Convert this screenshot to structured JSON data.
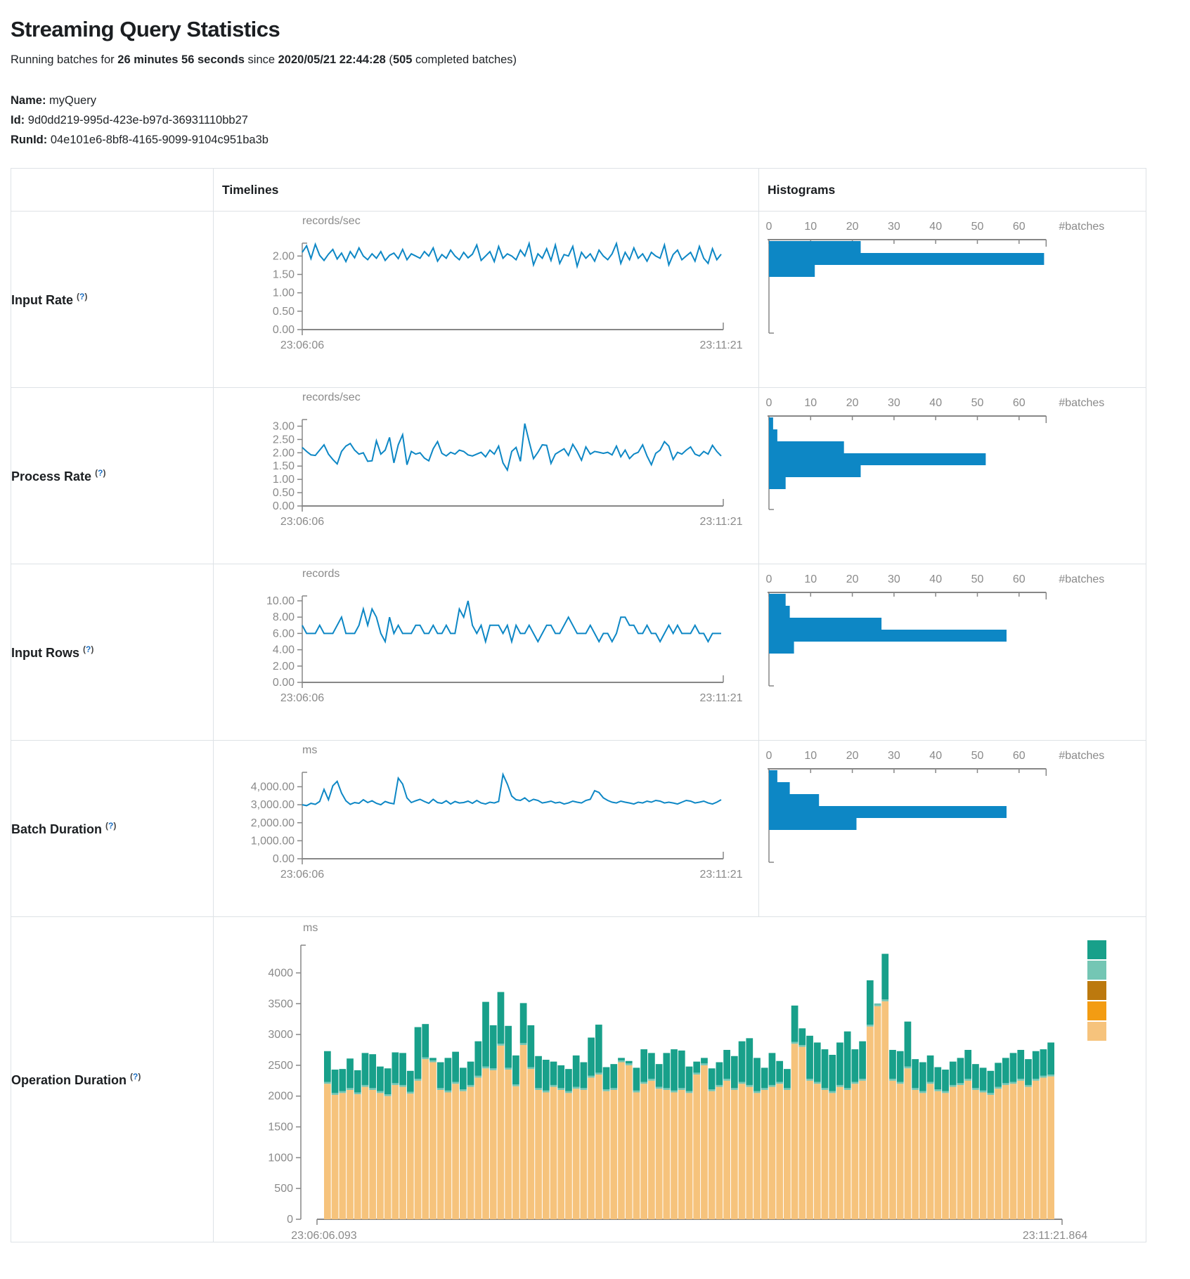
{
  "page": {
    "title": "Streaming Query Statistics",
    "subtitle": {
      "prefix": "Running batches for ",
      "duration": "26 minutes 56 seconds",
      "mid": " since ",
      "start_time": "2020/05/21 22:44:28",
      "paren_open": " (",
      "completed_batches": "505",
      "suffix": " completed batches)"
    },
    "name_label": "Name:",
    "name_value": "myQuery",
    "id_label": "Id:",
    "id_value": "9d0dd219-995d-423e-b97d-36931110bb27",
    "runid_label": "RunId:",
    "runid_value": "04e101e6-8bf8-4165-9099-9104c951ba3b"
  },
  "table": {
    "header_timelines": "Timelines",
    "header_histograms": "Histograms"
  },
  "rows": [
    {
      "label": "Input Rate",
      "help_open": "(",
      "help_q": "?",
      "help_close": ")"
    },
    {
      "label": "Process Rate",
      "help_open": "(",
      "help_q": "?",
      "help_close": ")"
    },
    {
      "label": "Input Rows",
      "help_open": "(",
      "help_q": "?",
      "help_close": ")"
    },
    {
      "label": "Batch Duration",
      "help_open": "(",
      "help_q": "?",
      "help_close": ")"
    },
    {
      "label": "Operation Duration",
      "help_open": "(",
      "help_q": "?",
      "help_close": ")"
    }
  ],
  "colors": {
    "line_blue": "#0d87c5",
    "hist_blue": "#0d87c5",
    "axis_gray": "#878787",
    "text_gray": "#8a8a8a",
    "teal": "#18a08a",
    "light_teal": "#74c6b4",
    "dark_orange": "#bc790e",
    "orange": "#f39c12",
    "tan": "#f6c37c"
  },
  "chart_data": [
    {
      "name": "input_rate",
      "timeline": {
        "type": "line",
        "unit": "records/sec",
        "x_start": "23:06:06",
        "x_end": "23:11:21",
        "ymax": 2.35,
        "yticks": [
          2.0,
          1.5,
          1.0,
          0.5,
          0
        ],
        "ytick_labels": [
          "2.00",
          "1.50",
          "1.00",
          "0.50",
          "0.00"
        ],
        "values": [
          2.1,
          2.28,
          1.93,
          2.32,
          2.02,
          1.88,
          2.05,
          2.18,
          1.92,
          2.08,
          1.85,
          2.12,
          1.95,
          2.22,
          2.0,
          1.9,
          2.06,
          1.94,
          2.12,
          1.88,
          2.02,
          2.08,
          1.93,
          2.18,
          1.9,
          2.06,
          2.0,
          1.94,
          2.12,
          2.0,
          2.22,
          1.86,
          2.04,
          1.94,
          2.16,
          2.0,
          1.9,
          2.1,
          1.95,
          2.05,
          2.3,
          1.88,
          2.0,
          2.12,
          1.85,
          2.26,
          1.94,
          2.06,
          2.0,
          1.9,
          2.16,
          2.0,
          2.34,
          1.76,
          2.06,
          1.94,
          2.2,
          1.88,
          2.3,
          1.8,
          2.04,
          2.0,
          2.26,
          1.72,
          2.1,
          1.94,
          2.06,
          1.86,
          2.16,
          2.0,
          1.9,
          2.06,
          2.34,
          1.8,
          2.1,
          1.9,
          2.22,
          1.94,
          2.06,
          1.86,
          2.1,
          2.0,
          1.94,
          2.3,
          1.76,
          2.04,
          2.16,
          1.9,
          2.0,
          2.1,
          1.86,
          2.26,
          1.94,
          1.8,
          2.2,
          1.9,
          2.05
        ]
      },
      "histogram": {
        "type": "bar",
        "xlabel": "#batches",
        "xticks": [
          0,
          10,
          20,
          30,
          40,
          50,
          60
        ],
        "axis_max": 66.5,
        "values": [
          22,
          66,
          11
        ]
      }
    },
    {
      "name": "process_rate",
      "timeline": {
        "type": "line",
        "unit": "records/sec",
        "x_start": "23:06:06",
        "x_end": "23:11:21",
        "ymax": 3.25,
        "yticks": [
          3.0,
          2.5,
          2.0,
          1.5,
          1.0,
          0.5,
          0
        ],
        "ytick_labels": [
          "3.00",
          "2.50",
          "2.00",
          "1.50",
          "1.00",
          "0.50",
          "0.00"
        ],
        "values": [
          2.2,
          2.05,
          1.92,
          1.9,
          2.1,
          2.3,
          1.95,
          1.75,
          1.58,
          2.05,
          2.25,
          2.35,
          2.1,
          1.95,
          2.0,
          1.68,
          1.7,
          2.45,
          1.95,
          2.1,
          2.58,
          1.62,
          2.3,
          2.68,
          1.55,
          2.05,
          1.95,
          2.0,
          1.8,
          1.7,
          2.15,
          2.42,
          1.98,
          1.88,
          2.02,
          1.95,
          2.1,
          2.05,
          1.92,
          1.88,
          1.95,
          2.02,
          1.85,
          2.1,
          1.95,
          2.25,
          1.62,
          1.35,
          2.05,
          2.2,
          1.68,
          3.1,
          2.42,
          1.78,
          2.02,
          2.3,
          2.28,
          1.6,
          1.95,
          2.05,
          2.15,
          1.9,
          2.32,
          2.05,
          1.72,
          2.22,
          1.95,
          2.05,
          2.02,
          1.98,
          2.02,
          1.92,
          2.25,
          1.85,
          2.1,
          1.78,
          1.95,
          2.02,
          2.3,
          1.88,
          1.55,
          1.98,
          2.1,
          2.42,
          2.25,
          1.75,
          2.02,
          1.95,
          2.1,
          2.22,
          1.95,
          1.88,
          2.05,
          1.95,
          2.28,
          2.05,
          1.88
        ]
      },
      "histogram": {
        "type": "bar",
        "xlabel": "#batches",
        "xticks": [
          0,
          10,
          20,
          30,
          40,
          50,
          60
        ],
        "axis_max": 66.5,
        "values": [
          1,
          2,
          18,
          52,
          22,
          4
        ]
      }
    },
    {
      "name": "input_rows",
      "timeline": {
        "type": "line",
        "unit": "records",
        "x_start": "23:06:06",
        "x_end": "23:11:21",
        "ymax": 10.6,
        "yticks": [
          10,
          8,
          6,
          4,
          2,
          0
        ],
        "ytick_labels": [
          "10.00",
          "8.00",
          "6.00",
          "4.00",
          "2.00",
          "0.00"
        ],
        "values": [
          7,
          6,
          6,
          6,
          7,
          6,
          6,
          6,
          7,
          8,
          6,
          6,
          6,
          7,
          9,
          7,
          9,
          8,
          6,
          5,
          8,
          6,
          7,
          6,
          6,
          6,
          7,
          7,
          6,
          6,
          7,
          6,
          6,
          7,
          6,
          6,
          9,
          8,
          10,
          7,
          6,
          7,
          5,
          7,
          7,
          7,
          6,
          7,
          5,
          7,
          6,
          6,
          7,
          6,
          5,
          6,
          7,
          7,
          6,
          6,
          7,
          8,
          7,
          6,
          6,
          6,
          7,
          6,
          5,
          6,
          6,
          5,
          6,
          8,
          8,
          7,
          7,
          6,
          6,
          7,
          6,
          6,
          5,
          6,
          7,
          6,
          7,
          6,
          6,
          6,
          7,
          6,
          6,
          5,
          6,
          6,
          6
        ]
      },
      "histogram": {
        "type": "bar",
        "xlabel": "#batches",
        "xticks": [
          0,
          10,
          20,
          30,
          40,
          50,
          60
        ],
        "axis_max": 66.5,
        "values": [
          4,
          5,
          27,
          57,
          6
        ]
      }
    },
    {
      "name": "batch_duration",
      "timeline": {
        "type": "line",
        "unit": "ms",
        "x_start": "23:06:06",
        "x_end": "23:11:21",
        "ymax": 4800,
        "yticks": [
          4000,
          3000,
          2000,
          1000,
          0
        ],
        "ytick_labels": [
          "4,000.00",
          "3,000.00",
          "2,000.00",
          "1,000.00",
          "0.00"
        ],
        "values": [
          3000,
          2950,
          3080,
          3020,
          3180,
          3850,
          3280,
          4050,
          4300,
          3650,
          3220,
          3020,
          3120,
          3080,
          3280,
          3120,
          3220,
          3080,
          3000,
          3180,
          3100,
          3050,
          4480,
          4150,
          3380,
          3120,
          3220,
          3300,
          3180,
          3080,
          3300,
          3120,
          3080,
          3220,
          3040,
          3180,
          3100,
          3120,
          3200,
          3080,
          3240,
          3100,
          3040,
          3140,
          3100,
          3180,
          4680,
          4150,
          3480,
          3280,
          3240,
          3380,
          3180,
          3300,
          3240,
          3100,
          3140,
          3200,
          3100,
          3140,
          3040,
          3100,
          3200,
          3140,
          3100,
          3240,
          3300,
          3780,
          3680,
          3380,
          3240,
          3140,
          3100,
          3200,
          3140,
          3100,
          3040,
          3140,
          3100,
          3200,
          3140,
          3240,
          3200,
          3100,
          3140,
          3100,
          3040,
          3140,
          3240,
          3200,
          3100,
          3140,
          3200,
          3100,
          3040,
          3140,
          3280
        ]
      },
      "histogram": {
        "type": "bar",
        "xlabel": "#batches",
        "xticks": [
          0,
          10,
          20,
          30,
          40,
          50,
          60
        ],
        "axis_max": 66.5,
        "values": [
          2,
          5,
          12,
          57,
          21
        ]
      }
    },
    {
      "name": "operation_duration",
      "stacked": {
        "type": "stacked-bar",
        "unit": "ms",
        "x_start": "23:06:06.093",
        "x_end": "23:11:21.864",
        "ymax": 4450,
        "yticks": [
          4000,
          3500,
          3000,
          2500,
          2000,
          1500,
          1000,
          500,
          0
        ],
        "ytick_labels": [
          "4000",
          "3500",
          "3000",
          "2500",
          "2000",
          "1500",
          "1000",
          "500",
          "0"
        ],
        "legend_colors": [
          "#18a08a",
          "#74c6b4",
          "#bc790e",
          "#f39c12",
          "#f6c37c"
        ],
        "stack_colors_bottom_to_top": [
          "#f6c37c",
          "#74c6b4",
          "#18a08a"
        ],
        "sliver": 30,
        "base": [
          2200,
          2020,
          2050,
          2100,
          2030,
          2150,
          2100,
          2050,
          2000,
          2180,
          2150,
          2040,
          2250,
          2600,
          2550,
          2100,
          2060,
          2200,
          2080,
          2150,
          2300,
          2450,
          2420,
          2820,
          2430,
          2160,
          2830,
          2440,
          2100,
          2060,
          2150,
          2100,
          2050,
          2120,
          2100,
          2300,
          2350,
          2080,
          2100,
          2550,
          2500,
          2060,
          2200,
          2250,
          2120,
          2100,
          2060,
          2100,
          2050,
          2350,
          2500,
          2080,
          2150,
          2250,
          2100,
          2200,
          2150,
          2050,
          2100,
          2150,
          2200,
          2100,
          2850,
          2800,
          2250,
          2200,
          2100,
          2050,
          2150,
          2100,
          2200,
          2250,
          3130,
          3460,
          3540,
          2250,
          2200,
          2450,
          2100,
          2050,
          2200,
          2080,
          2050,
          2150,
          2180,
          2250,
          2100,
          2060,
          2020,
          2120,
          2180,
          2200,
          2250,
          2150,
          2250,
          2300,
          2320
        ],
        "total": [
          2730,
          2430,
          2440,
          2610,
          2420,
          2700,
          2680,
          2480,
          2450,
          2710,
          2700,
          2410,
          3120,
          3170,
          2620,
          2550,
          2620,
          2720,
          2460,
          2560,
          2890,
          3530,
          3150,
          3690,
          3140,
          2660,
          3510,
          3150,
          2650,
          2590,
          2560,
          2500,
          2440,
          2660,
          2550,
          2950,
          3160,
          2470,
          2520,
          2620,
          2570,
          2460,
          2760,
          2700,
          2520,
          2700,
          2760,
          2740,
          2480,
          2560,
          2620,
          2450,
          2550,
          2750,
          2650,
          2890,
          2940,
          2620,
          2460,
          2700,
          2570,
          2440,
          3470,
          3100,
          2980,
          2870,
          2760,
          2670,
          2870,
          3050,
          2760,
          2890,
          3880,
          3500,
          4310,
          2750,
          2730,
          3210,
          2600,
          2550,
          2660,
          2470,
          2430,
          2560,
          2620,
          2750,
          2520,
          2460,
          2410,
          2540,
          2620,
          2700,
          2750,
          2600,
          2730,
          2760,
          2870
        ]
      }
    }
  ]
}
